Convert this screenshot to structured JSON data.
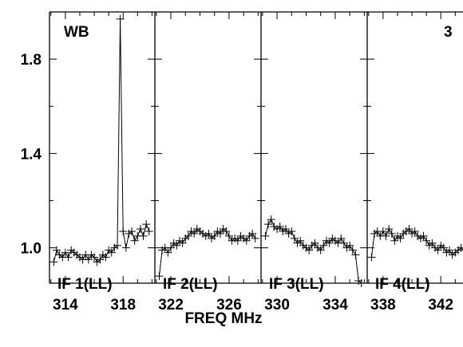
{
  "chart_data": {
    "type": "line",
    "title": "WB",
    "page_label": "3",
    "xlabel": "FREQ MHz",
    "ylabel": "",
    "ylim": [
      0.85,
      2.0
    ],
    "y_ticks": [
      "1.0",
      "1.4",
      "1.8"
    ],
    "y_tick_values": [
      1.0,
      1.4,
      1.8
    ],
    "grid": false,
    "panels": [
      {
        "name": "IF 1(LL)",
        "xlim": [
          312.9,
          320.2
        ],
        "x_ticks": [
          "314",
          "318"
        ],
        "x_tick_values": [
          314,
          318
        ],
        "x": [
          313.2,
          313.4,
          313.6,
          313.8,
          314.0,
          314.2,
          314.4,
          314.6,
          314.8,
          315.0,
          315.2,
          315.4,
          315.6,
          315.8,
          316.0,
          316.2,
          316.4,
          316.6,
          316.8,
          317.0,
          317.2,
          317.4,
          317.6,
          317.8,
          318.0,
          318.2,
          318.4,
          318.6,
          318.8,
          319.0,
          319.2,
          319.4,
          319.6,
          319.8
        ],
        "values": [
          0.94,
          0.99,
          0.97,
          0.96,
          0.98,
          0.96,
          0.99,
          0.98,
          0.97,
          0.96,
          0.95,
          0.97,
          0.95,
          0.97,
          0.96,
          0.94,
          0.95,
          0.97,
          0.96,
          0.99,
          0.98,
          1.0,
          1.01,
          1.97,
          1.07,
          1.0,
          1.06,
          1.07,
          1.03,
          1.05,
          1.08,
          1.05,
          1.1,
          1.07
        ]
      },
      {
        "name": "IF 2(LL)",
        "xlim": [
          320.9,
          328.2
        ],
        "x_ticks": [
          "322",
          "326"
        ],
        "x_tick_values": [
          322,
          326
        ],
        "x": [
          321.2,
          321.4,
          321.6,
          321.8,
          322.0,
          322.2,
          322.4,
          322.6,
          322.8,
          323.0,
          323.2,
          323.4,
          323.6,
          323.8,
          324.0,
          324.2,
          324.4,
          324.6,
          324.8,
          325.0,
          325.2,
          325.4,
          325.6,
          325.8,
          326.0,
          326.2,
          326.4,
          326.6,
          326.8,
          327.0,
          327.2,
          327.4,
          327.6,
          327.8
        ],
        "values": [
          0.88,
          0.99,
          1.0,
          0.98,
          1.0,
          1.02,
          1.01,
          1.03,
          1.02,
          1.04,
          1.05,
          1.07,
          1.06,
          1.08,
          1.07,
          1.06,
          1.05,
          1.06,
          1.04,
          1.05,
          1.07,
          1.06,
          1.08,
          1.07,
          1.05,
          1.03,
          1.04,
          1.03,
          1.05,
          1.04,
          1.03,
          1.05,
          1.06,
          1.04
        ]
      },
      {
        "name": "IF 3(LL)",
        "xlim": [
          328.9,
          336.2
        ],
        "x_ticks": [
          "330",
          "334"
        ],
        "x_tick_values": [
          330,
          334
        ],
        "x": [
          329.2,
          329.4,
          329.6,
          329.8,
          330.0,
          330.2,
          330.4,
          330.6,
          330.8,
          331.0,
          331.2,
          331.4,
          331.6,
          331.8,
          332.0,
          332.2,
          332.4,
          332.6,
          332.8,
          333.0,
          333.2,
          333.4,
          333.6,
          333.8,
          334.0,
          334.2,
          334.4,
          334.6,
          334.8,
          335.0,
          335.2,
          335.4,
          335.6,
          335.8
        ],
        "values": [
          1.05,
          1.1,
          1.12,
          1.09,
          1.08,
          1.09,
          1.07,
          1.08,
          1.06,
          1.07,
          1.04,
          1.02,
          1.03,
          1.01,
          1.0,
          0.99,
          1.01,
          1.02,
          1.0,
          0.99,
          1.01,
          1.03,
          1.02,
          1.04,
          1.03,
          1.02,
          1.04,
          1.02,
          1.0,
          1.01,
          0.99,
          0.97,
          0.86,
          0.85
        ]
      },
      {
        "name": "IF 4(LL)",
        "xlim": [
          336.9,
          344.2
        ],
        "x_ticks": [
          "338",
          "342"
        ],
        "x_tick_values": [
          338,
          342
        ],
        "x": [
          337.2,
          337.4,
          337.6,
          337.8,
          338.0,
          338.2,
          338.4,
          338.6,
          338.8,
          339.0,
          339.2,
          339.4,
          339.6,
          339.8,
          340.0,
          340.2,
          340.4,
          340.6,
          340.8,
          341.0,
          341.2,
          341.4,
          341.6,
          341.8,
          342.0,
          342.2,
          342.4,
          342.6,
          342.8,
          343.0,
          343.2,
          343.4,
          343.6,
          343.8
        ],
        "values": [
          0.96,
          1.06,
          1.07,
          1.05,
          1.07,
          1.05,
          1.08,
          1.06,
          1.03,
          1.05,
          1.04,
          1.06,
          1.07,
          1.08,
          1.06,
          1.07,
          1.05,
          1.04,
          1.05,
          1.03,
          1.01,
          1.02,
          1.0,
          0.99,
          1.01,
          1.0,
          0.98,
          0.99,
          0.97,
          0.98,
          0.99,
          1.0,
          0.99,
          1.01
        ]
      }
    ]
  }
}
